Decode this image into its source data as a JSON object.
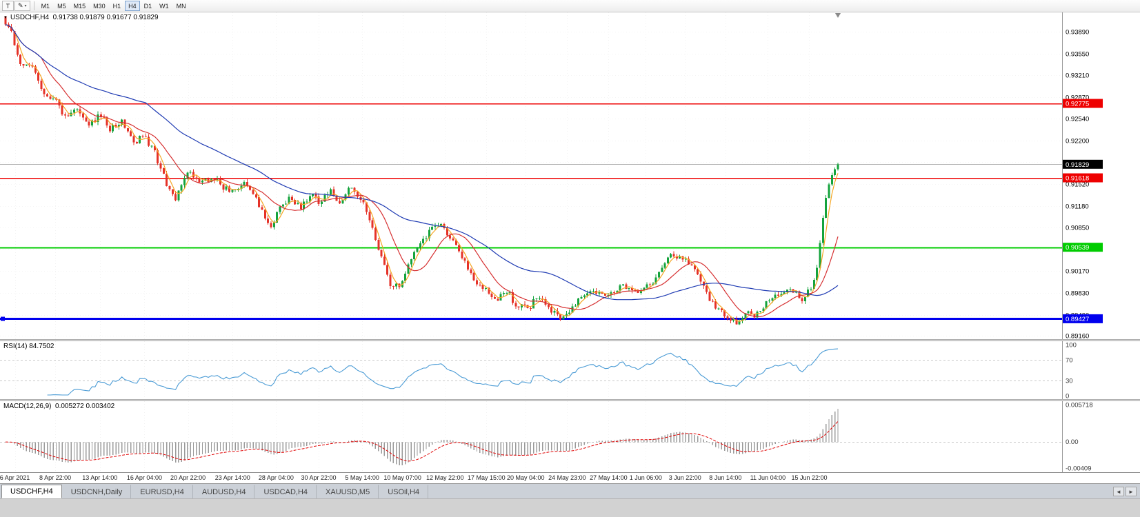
{
  "toolbar": {
    "text_tool_label": "T",
    "timeframes": [
      "M1",
      "M5",
      "M15",
      "M30",
      "H1",
      "H4",
      "D1",
      "W1",
      "MN"
    ],
    "active_timeframe": "H4"
  },
  "icons": {
    "pencil": "✎",
    "caret": "▾",
    "title_marker": "▼",
    "scroll_left": "◄",
    "scroll_right": "►"
  },
  "chart_data": {
    "type": "candlestick",
    "symbol": "USDCHF",
    "timeframe": "H4",
    "title": "USDCHF,H4  0.91738 0.91879 0.91677 0.91829",
    "open": "0.91738",
    "high": "0.91879",
    "low": "0.91677",
    "close": "0.91829",
    "price_axis_labels": [
      "0.93890",
      "0.93550",
      "0.93210",
      "0.92870",
      "0.92540",
      "0.92200",
      "0.91860",
      "0.91520",
      "0.91180",
      "0.90850",
      "0.90510",
      "0.90170",
      "0.89830",
      "0.89490",
      "0.89160"
    ],
    "price_max": 0.9419,
    "price_min": 0.8911,
    "time_labels": [
      {
        "t": 0.014,
        "label": "6 Apr 2021"
      },
      {
        "t": 0.052,
        "label": "8 Apr 22:00"
      },
      {
        "t": 0.094,
        "label": "13 Apr 14:00"
      },
      {
        "t": 0.136,
        "label": "16 Apr 04:00"
      },
      {
        "t": 0.177,
        "label": "20 Apr 22:00"
      },
      {
        "t": 0.219,
        "label": "23 Apr 14:00"
      },
      {
        "t": 0.26,
        "label": "28 Apr 04:00"
      },
      {
        "t": 0.3,
        "label": "30 Apr 22:00"
      },
      {
        "t": 0.341,
        "label": "5 May 14:00"
      },
      {
        "t": 0.379,
        "label": "10 May 07:00"
      },
      {
        "t": 0.419,
        "label": "12 May 22:00"
      },
      {
        "t": 0.458,
        "label": "17 May 15:00"
      },
      {
        "t": 0.495,
        "label": "20 May 04:00"
      },
      {
        "t": 0.534,
        "label": "24 May 23:00"
      },
      {
        "t": 0.573,
        "label": "27 May 14:00"
      },
      {
        "t": 0.608,
        "label": "1 Jun 06:00"
      },
      {
        "t": 0.645,
        "label": "3 Jun 22:00"
      },
      {
        "t": 0.683,
        "label": "8 Jun 14:00"
      },
      {
        "t": 0.723,
        "label": "11 Jun 04:00"
      },
      {
        "t": 0.762,
        "label": "15 Jun 22:00"
      }
    ],
    "hlines": [
      {
        "value": 0.92775,
        "label": "0.92775",
        "color": "#ee0000",
        "width": 1.5,
        "marker_left": false
      },
      {
        "value": 0.91618,
        "label": "0.91618",
        "color": "#ee0000",
        "width": 1.5,
        "marker_left": false
      },
      {
        "value": 0.90539,
        "label": "0.90539",
        "color": "#00cc00",
        "width": 2,
        "marker_left": false
      },
      {
        "value": 0.89427,
        "label": "0.89427",
        "color": "#0000ee",
        "width": 3,
        "marker_left": true
      }
    ],
    "bid": {
      "value": 0.91829,
      "label": "0.91829",
      "line_color": "#b4b4b4",
      "badge_color": "#000000"
    },
    "candles": {
      "count": 280,
      "seed": 1377,
      "noise": 0.001,
      "wick": 0.0005,
      "up_color": "#14a33c",
      "down_color": "#e53228"
    },
    "price_path_anchors": [
      [
        0,
        0.9405
      ],
      [
        0.008,
        0.9385
      ],
      [
        0.02,
        0.933
      ],
      [
        0.03,
        0.9342
      ],
      [
        0.045,
        0.9298
      ],
      [
        0.06,
        0.9282
      ],
      [
        0.072,
        0.9256
      ],
      [
        0.085,
        0.927
      ],
      [
        0.1,
        0.9242
      ],
      [
        0.113,
        0.926
      ],
      [
        0.125,
        0.9237
      ],
      [
        0.14,
        0.9248
      ],
      [
        0.155,
        0.9218
      ],
      [
        0.167,
        0.9228
      ],
      [
        0.18,
        0.9198
      ],
      [
        0.195,
        0.9148
      ],
      [
        0.205,
        0.9125
      ],
      [
        0.213,
        0.9162
      ],
      [
        0.222,
        0.9168
      ],
      [
        0.235,
        0.9152
      ],
      [
        0.25,
        0.9163
      ],
      [
        0.262,
        0.9145
      ],
      [
        0.273,
        0.914
      ],
      [
        0.285,
        0.9155
      ],
      [
        0.3,
        0.913
      ],
      [
        0.312,
        0.9102
      ],
      [
        0.32,
        0.9088
      ],
      [
        0.328,
        0.9112
      ],
      [
        0.34,
        0.913
      ],
      [
        0.355,
        0.9118
      ],
      [
        0.368,
        0.9136
      ],
      [
        0.378,
        0.9124
      ],
      [
        0.39,
        0.9142
      ],
      [
        0.402,
        0.912
      ],
      [
        0.414,
        0.9146
      ],
      [
        0.428,
        0.9126
      ],
      [
        0.44,
        0.9092
      ],
      [
        0.45,
        0.904
      ],
      [
        0.462,
        0.8998
      ],
      [
        0.472,
        0.8994
      ],
      [
        0.48,
        0.9012
      ],
      [
        0.492,
        0.9045
      ],
      [
        0.505,
        0.9072
      ],
      [
        0.517,
        0.9092
      ],
      [
        0.528,
        0.9082
      ],
      [
        0.54,
        0.9058
      ],
      [
        0.553,
        0.9028
      ],
      [
        0.566,
        0.8998
      ],
      [
        0.578,
        0.8988
      ],
      [
        0.59,
        0.8974
      ],
      [
        0.602,
        0.8986
      ],
      [
        0.614,
        0.8963
      ],
      [
        0.627,
        0.8958
      ],
      [
        0.64,
        0.8976
      ],
      [
        0.654,
        0.8958
      ],
      [
        0.668,
        0.8944
      ],
      [
        0.676,
        0.8952
      ],
      [
        0.69,
        0.8976
      ],
      [
        0.706,
        0.8986
      ],
      [
        0.724,
        0.898
      ],
      [
        0.74,
        0.8996
      ],
      [
        0.756,
        0.8984
      ],
      [
        0.77,
        0.8992
      ],
      [
        0.785,
        0.9012
      ],
      [
        0.8,
        0.9042
      ],
      [
        0.817,
        0.9034
      ],
      [
        0.827,
        0.9018
      ],
      [
        0.84,
        0.8988
      ],
      [
        0.853,
        0.8958
      ],
      [
        0.866,
        0.8948
      ],
      [
        0.878,
        0.8934
      ],
      [
        0.89,
        0.8956
      ],
      [
        0.9,
        0.8944
      ],
      [
        0.916,
        0.8974
      ],
      [
        0.93,
        0.8982
      ],
      [
        0.944,
        0.8986
      ],
      [
        0.957,
        0.8974
      ],
      [
        0.966,
        0.8986
      ],
      [
        0.973,
        0.9004
      ],
      [
        0.98,
        0.9078
      ],
      [
        0.987,
        0.9138
      ],
      [
        0.993,
        0.9168
      ],
      [
        1,
        0.91829
      ]
    ],
    "moving_averages": [
      {
        "period": 4,
        "color": "#f5a623"
      },
      {
        "period": 13,
        "color": "#d63031"
      },
      {
        "period": 48,
        "color": "#1f3bb3"
      }
    ]
  },
  "rsi": {
    "label": "RSI(14) 84.7502",
    "period": 14,
    "color": "#4a9bd5",
    "levels": [
      {
        "v": 100,
        "label": "100",
        "dashed": false
      },
      {
        "v": 70,
        "label": "70",
        "dashed": true
      },
      {
        "v": 30,
        "label": "30",
        "dashed": true
      },
      {
        "v": 0,
        "label": "0",
        "dashed": false
      }
    ]
  },
  "macd": {
    "label": "MACD(12,26,9)  0.005272 0.003402",
    "fast": 12,
    "slow": 26,
    "signal_period": 9,
    "hist_color": "#9a9a9a",
    "signal_color": "#e00000",
    "axis": [
      {
        "v": 0.005718,
        "label": "0.005718"
      },
      {
        "v": 0,
        "label": "0.00"
      },
      {
        "v": -0.00409,
        "label": "-0.00409"
      }
    ]
  },
  "tabbar": {
    "tabs": [
      "USDCHF,H4",
      "USDCNH,Daily",
      "EURUSD,H4",
      "AUDUSD,H4",
      "USDCAD,H4",
      "XAUUSD,M5",
      "USOil,H4"
    ],
    "active_index": 0
  }
}
